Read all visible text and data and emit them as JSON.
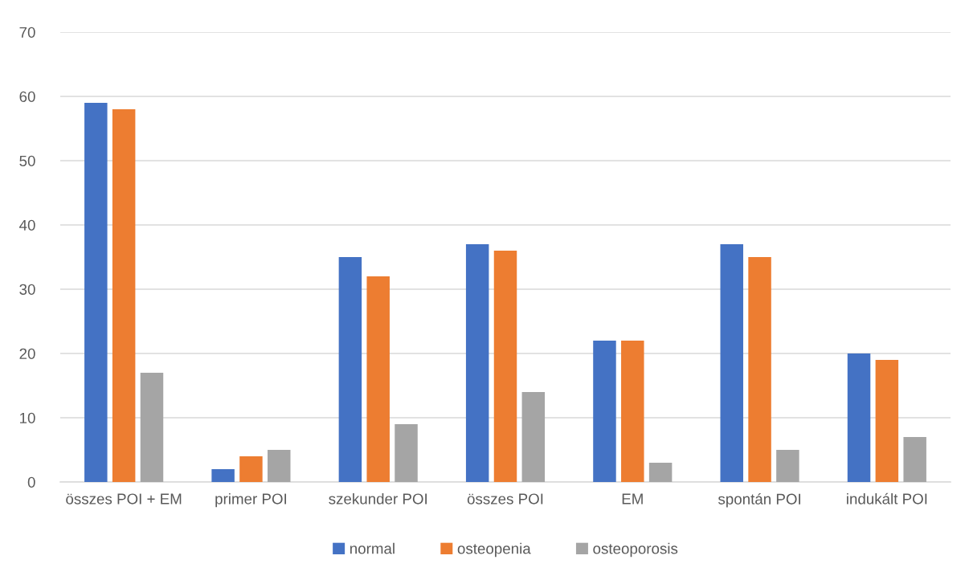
{
  "chart_data": {
    "type": "bar",
    "categories": [
      "összes POI + EM",
      "primer POI",
      "szekunder POI",
      "összes POI",
      "EM",
      "spontán POI",
      "indukált POI"
    ],
    "series": [
      {
        "name": "normal",
        "color": "#4472c4",
        "values": [
          59,
          2,
          35,
          37,
          22,
          37,
          20
        ]
      },
      {
        "name": "osteopenia",
        "color": "#ed7d31",
        "values": [
          58,
          4,
          32,
          36,
          22,
          35,
          19
        ]
      },
      {
        "name": "osteoporosis",
        "color": "#a5a5a5",
        "values": [
          17,
          5,
          9,
          14,
          3,
          5,
          7
        ]
      }
    ],
    "ylim": [
      0,
      70
    ],
    "yticks": [
      0,
      10,
      20,
      30,
      40,
      50,
      60,
      70
    ],
    "grid": "y",
    "legend": "bottom"
  }
}
